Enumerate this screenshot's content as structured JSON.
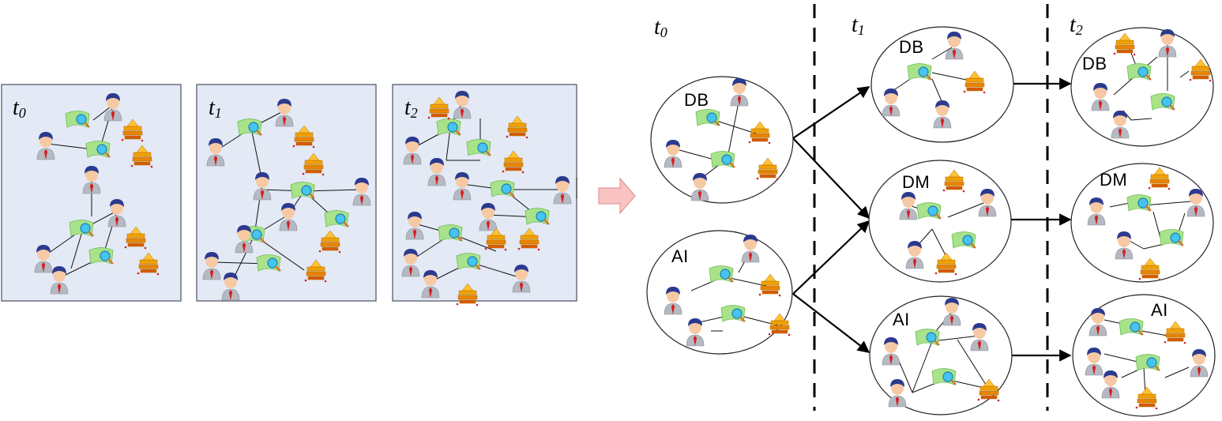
{
  "time_labels": [
    {
      "base": "t",
      "sub": "0"
    },
    {
      "base": "t",
      "sub": "1"
    },
    {
      "base": "t",
      "sub": "2"
    }
  ],
  "community_labels": {
    "db": "DB",
    "ai": "AI",
    "dm": "DM"
  },
  "node_types": [
    "person-icon",
    "paper-icon",
    "venue-icon"
  ],
  "colors": {
    "panel_bg": "#e3e9f5",
    "transition_arrow": "#f9c3c3",
    "person_head": "#f6c9a4",
    "person_hair": "#2b3a8f",
    "person_body": "#b5b9c2",
    "person_tie": "#d42020",
    "paper": "#a8e28a",
    "magnifier": "#44c4ef",
    "venue": "#f2a100"
  }
}
